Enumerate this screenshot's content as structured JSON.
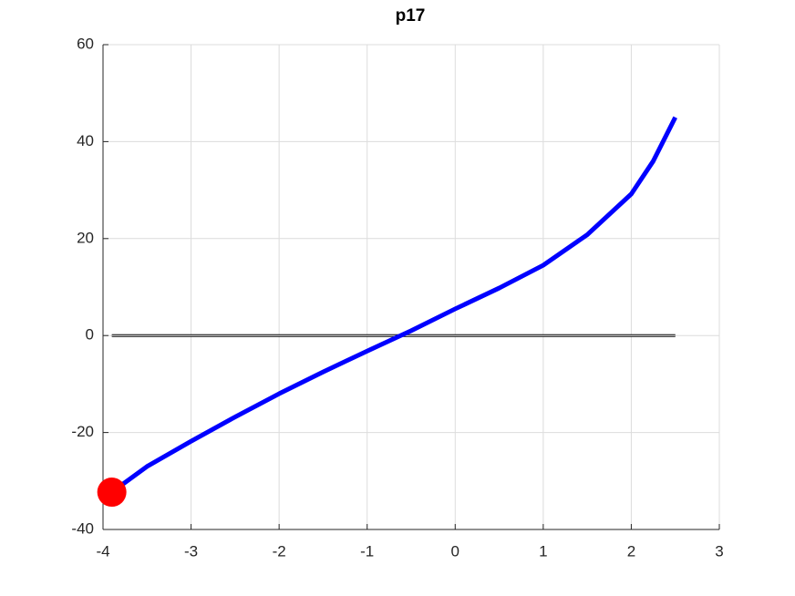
{
  "chart_data": {
    "type": "line",
    "title": "p17",
    "xlim": [
      -4,
      3
    ],
    "xticks": [
      -4,
      -3,
      -2,
      -1,
      0,
      1,
      2,
      3
    ],
    "ylim": [
      -40,
      60
    ],
    "yticks": [
      -40,
      -20,
      0,
      20,
      40,
      60
    ],
    "grid": true,
    "series": [
      {
        "color": "#0000ff",
        "x": [
          -3.9,
          -3.5,
          -3,
          -2.5,
          -2,
          -1.5,
          -1,
          -0.5,
          0,
          0.5,
          1,
          1.5,
          2,
          2.25,
          2.5
        ],
        "values": [
          -32.3,
          -27,
          -21.8,
          -16.8,
          -12,
          -7.5,
          -3.2,
          1,
          5.5,
          9.8,
          14.5,
          20.8,
          29.2,
          36,
          45
        ]
      },
      {
        "color": "#000000",
        "x": [
          -3.9,
          2.5
        ],
        "values": [
          0,
          0
        ]
      }
    ],
    "marker": {
      "color": "#ff0000",
      "x": -3.9,
      "y": -32.3
    }
  }
}
